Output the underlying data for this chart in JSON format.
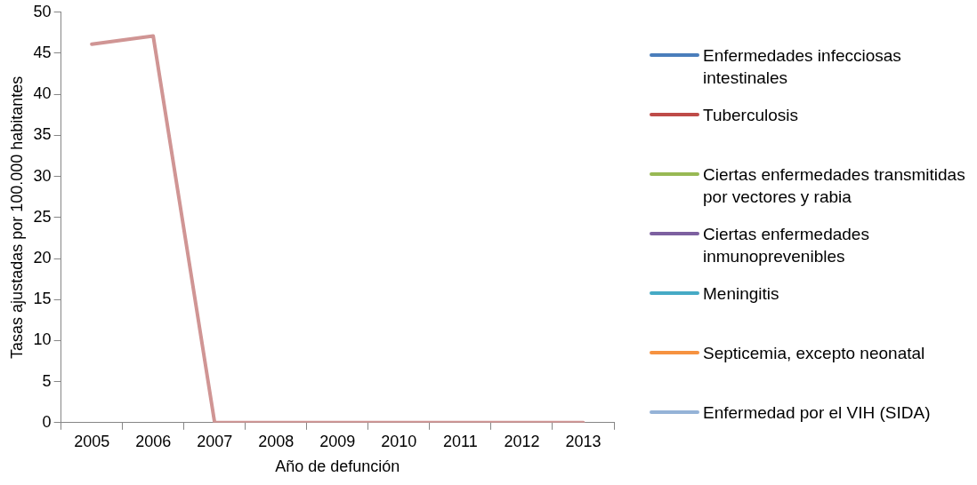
{
  "chart_data": {
    "type": "line",
    "xlabel": "Año de defunción",
    "ylabel": "Tasas ajustadas por 100.000 habitantes",
    "categories": [
      "2005",
      "2006",
      "2007",
      "2008",
      "2009",
      "2010",
      "2011",
      "2012",
      "2013"
    ],
    "ylim": [
      0,
      50
    ],
    "yticks": [
      0,
      5,
      10,
      15,
      20,
      25,
      30,
      35,
      40,
      45,
      50
    ],
    "grid": false,
    "legend": "right",
    "marker": "none",
    "line_style": "solid",
    "series": [
      {
        "name": "Enfermedades infecciosas intestinales",
        "color": "#4a7ebb",
        "values": [
          null,
          null,
          null,
          null,
          null,
          null,
          null,
          null,
          null
        ]
      },
      {
        "name": "Tuberculosis",
        "color": "#be4b48",
        "values": [
          null,
          null,
          null,
          null,
          null,
          null,
          null,
          null,
          null
        ]
      },
      {
        "name": "Ciertas enfermedades transmitidas por vectores y rabia",
        "color": "#98b954",
        "values": [
          null,
          null,
          null,
          null,
          null,
          null,
          null,
          null,
          null
        ]
      },
      {
        "name": "Ciertas enfermedades inmunoprevenibles",
        "color": "#7d60a0",
        "values": [
          null,
          null,
          null,
          null,
          null,
          null,
          null,
          null,
          null
        ]
      },
      {
        "name": "Meningitis",
        "color": "#46aac5",
        "values": [
          null,
          null,
          null,
          null,
          null,
          null,
          null,
          null,
          null
        ]
      },
      {
        "name": "Septicemia, excepto neonatal",
        "color": "#f69240",
        "values": [
          null,
          null,
          null,
          null,
          null,
          null,
          null,
          null,
          null
        ]
      },
      {
        "name": "Enfermedad por el VIH (SIDA)",
        "color": "#95b3d7",
        "values": [
          null,
          null,
          null,
          null,
          null,
          null,
          null,
          null,
          null
        ]
      },
      {
        "color": "#d09594",
        "values": [
          46.1,
          47.1,
          0,
          0,
          0,
          0,
          0,
          0,
          0
        ]
      }
    ]
  }
}
